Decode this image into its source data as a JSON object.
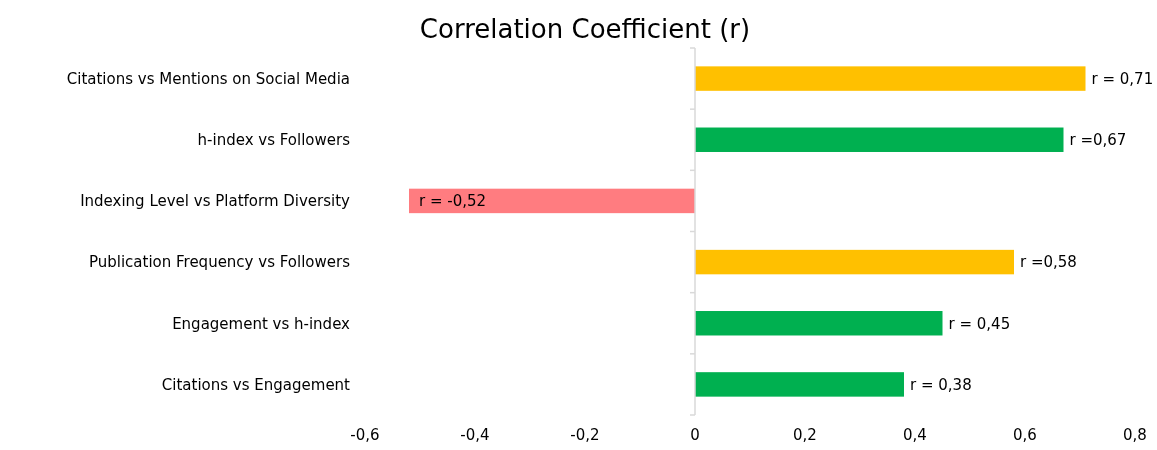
{
  "chart_data": {
    "type": "bar",
    "orientation": "horizontal",
    "title": "Correlation Coefficient (r)",
    "categories": [
      "Citations vs Mentions on Social Media",
      "h-index vs Followers",
      "Indexing Level vs Platform Diversity",
      "Publication Frequency vs Followers",
      "Engagement vs h-index",
      "Citations vs Engagement"
    ],
    "values": [
      0.71,
      0.67,
      -0.52,
      0.58,
      0.45,
      0.38
    ],
    "colors": [
      "#ffc000",
      "#00b050",
      "#ff7c80",
      "#ffc000",
      "#00b050",
      "#00b050"
    ],
    "value_labels": [
      "r = 0,71",
      "r =0,67",
      "r = -0,52",
      "r =0,58",
      "r = 0,45",
      "r = 0,38"
    ],
    "xlim": [
      -0.6,
      0.8
    ],
    "xticks": [
      {
        "value": -0.6,
        "label": "-0,6"
      },
      {
        "value": -0.4,
        "label": "-0,4"
      },
      {
        "value": -0.2,
        "label": "-0,2"
      },
      0,
      {
        "value": 0.2,
        "label": "0,2"
      },
      {
        "value": 0.4,
        "label": "0,4"
      },
      {
        "value": 0.6,
        "label": "0,6"
      },
      {
        "value": 0.8,
        "label": "0,8"
      }
    ]
  }
}
